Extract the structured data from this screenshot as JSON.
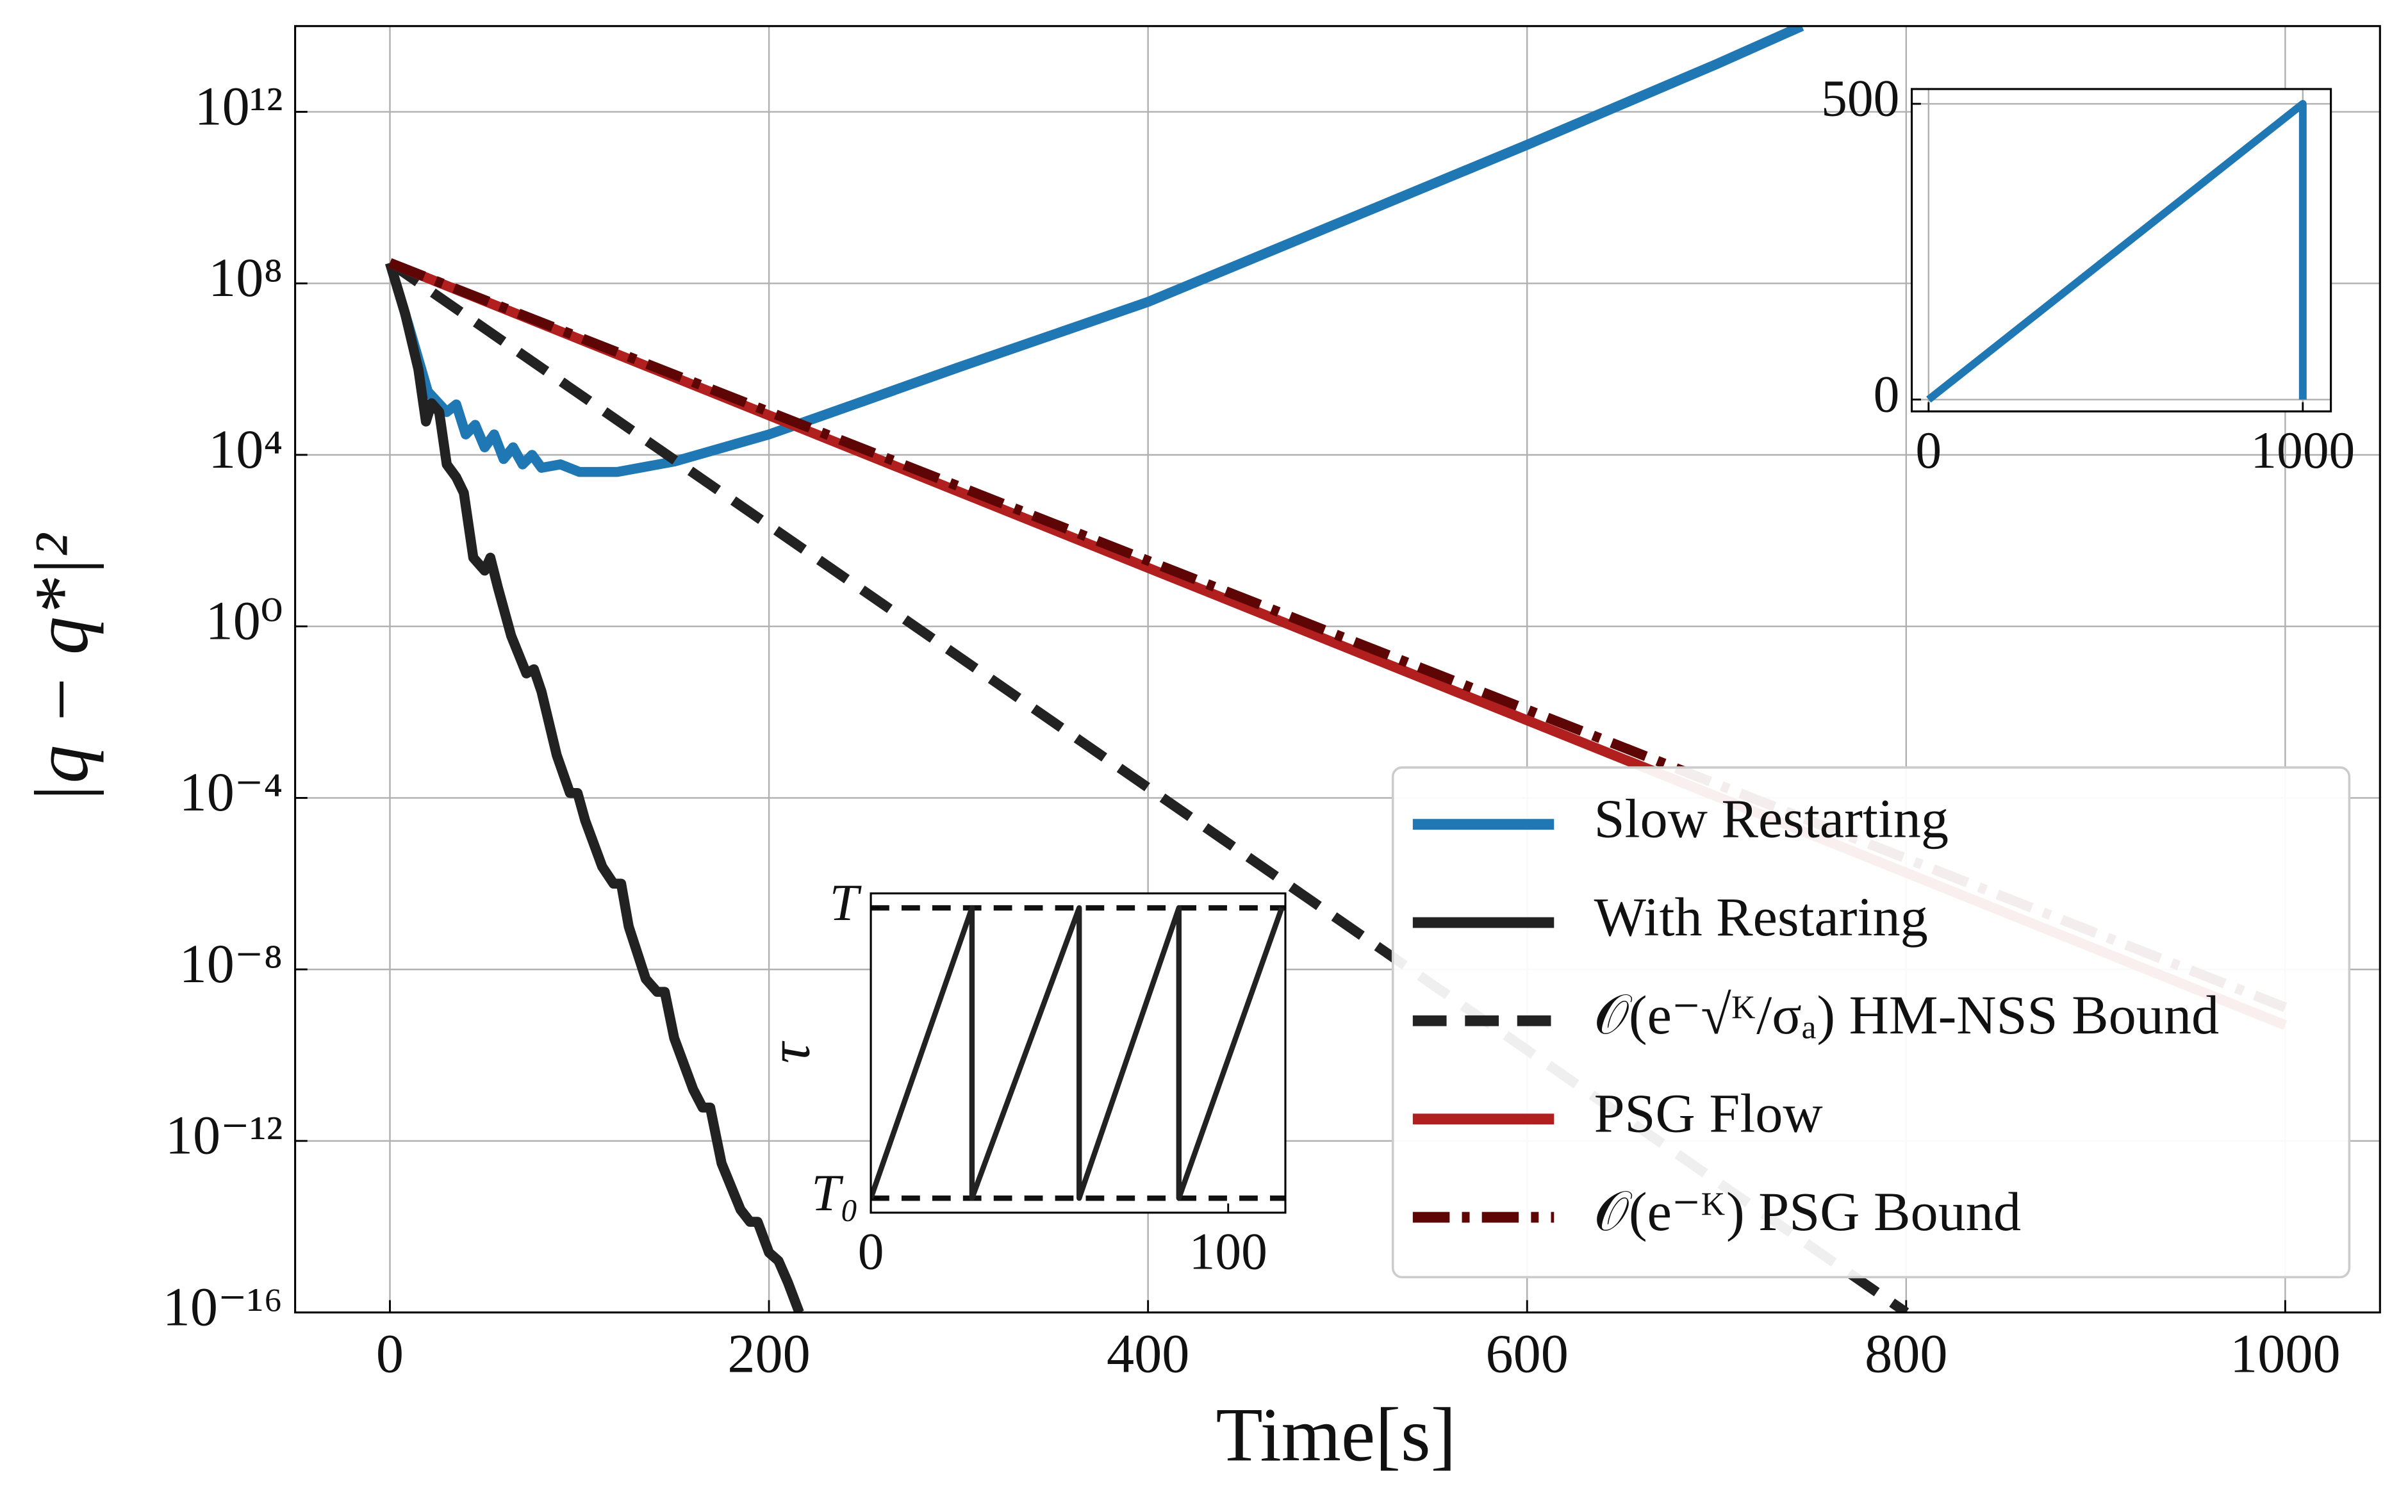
{
  "chart_data": [
    {
      "type": "line",
      "xlabel": "Time[s]",
      "ylabel": "|q − q*|²",
      "yscale": "log",
      "grid": true,
      "legend": "lower right",
      "xlim": [
        -50,
        1050
      ],
      "xticks": [
        0,
        200,
        400,
        600,
        800,
        1000
      ],
      "ylim": [
        1e-16,
        100000000000000.0
      ],
      "yticks": [
        {
          "value": 1e-16,
          "label": "10⁻¹⁶"
        },
        {
          "value": 1e-12,
          "label": "10⁻¹²"
        },
        {
          "value": 1e-08,
          "label": "10⁻⁸"
        },
        {
          "value": 0.0001,
          "label": "10⁻⁴"
        },
        {
          "value": 1,
          "label": "10⁰"
        },
        {
          "value": 10000,
          "label": "10⁴"
        },
        {
          "value": 100000000,
          "label": "10⁸"
        },
        {
          "value": 1000000000000.0,
          "label": "10¹²"
        }
      ],
      "series": [
        {
          "name": "Slow Restarting",
          "color": "#1f77b4",
          "linestyle": "solid",
          "x": [
            0,
            10,
            20,
            30,
            35,
            40,
            45,
            50,
            55,
            60,
            65,
            70,
            75,
            80,
            90,
            100,
            120,
            150,
            200,
            250,
            300,
            400,
            500,
            600,
            700,
            745
          ],
          "values": [
            300000000,
            10000000,
            300000,
            100000,
            150000,
            30000,
            50000,
            15000,
            30000,
            8000,
            15000,
            6000,
            10000,
            5000,
            6000,
            4000,
            4000,
            7000,
            30000,
            180000,
            1100000,
            37000000,
            2500000000,
            170000000000,
            13000000000000,
            100000000000000
          ]
        },
        {
          "name": "With Restaring",
          "color": "#222222",
          "linestyle": "solid",
          "x": [
            0,
            8,
            15,
            19,
            22,
            26,
            30,
            35,
            39,
            44,
            50,
            53,
            57,
            64,
            72,
            76,
            80,
            88,
            95,
            99,
            103,
            112,
            118,
            122,
            126,
            135,
            141,
            145,
            150,
            160,
            165,
            169,
            175,
            185,
            190,
            194,
            200,
            205,
            210,
            216
          ],
          "values": [
            300000000,
            20000000,
            1000000,
            60000,
            160000,
            100000,
            6000,
            3000,
            1300,
            40,
            20,
            40,
            8,
            0.6,
            0.08,
            0.1,
            0.03,
            0.001,
            0.00013,
            0.00013,
            3e-05,
            2.5e-06,
            1e-06,
            1e-06,
            1e-07,
            6e-09,
            3e-09,
            3e-09,
            2.5e-10,
            1.6e-11,
            6e-12,
            6e-12,
            3e-13,
            2.5e-14,
            1.3e-14,
            1.3e-14,
            2.5e-15,
            1.6e-15,
            5e-16,
            1e-16
          ]
        },
        {
          "name": "𝒪(e⁻√ᴷ/σₐ) HM-NSS Bound",
          "color": "#222222",
          "linestyle": "dashed",
          "x": [
            0,
            800
          ],
          "values": [
            300000000,
            1e-16
          ]
        },
        {
          "name": "PSG Flow",
          "color": "#b21f1f",
          "linestyle": "solid",
          "x": [
            0,
            1000
          ],
          "values": [
            300000000,
            5e-10
          ]
        },
        {
          "name": "𝒪(e⁻ᴷ) PSG Bound",
          "color": "#5e0606",
          "linestyle": "dashdot",
          "x": [
            0,
            1000
          ],
          "values": [
            300000000,
            1.3e-09
          ]
        }
      ]
    },
    {
      "type": "line",
      "grid": true,
      "xlim": [
        -45,
        1075
      ],
      "xticks": [
        0,
        1000
      ],
      "ylim": [
        -20,
        525
      ],
      "yticks": [
        0,
        500
      ],
      "series": [
        {
          "color": "#1f77b4",
          "linestyle": "solid",
          "x": [
            0,
            1000,
            1000
          ],
          "values": [
            0,
            500,
            0
          ]
        }
      ]
    },
    {
      "type": "line",
      "ylabel": "τ",
      "grid": false,
      "ytick_lines": "dashed",
      "xlim": [
        0,
        116
      ],
      "xticks": [
        0,
        100
      ],
      "ylim": [
        -0.05,
        1.05
      ],
      "yticks": [
        {
          "value": 0,
          "label": "T₀"
        },
        {
          "value": 1,
          "label": "T"
        }
      ],
      "series": [
        {
          "color": "#222222",
          "linestyle": "solid",
          "x": [
            0,
            28.3,
            28.3,
            58.3,
            58.3,
            86.2,
            86.2,
            115
          ],
          "values": [
            0,
            1,
            0,
            1,
            0,
            1,
            0,
            1
          ]
        }
      ]
    }
  ]
}
